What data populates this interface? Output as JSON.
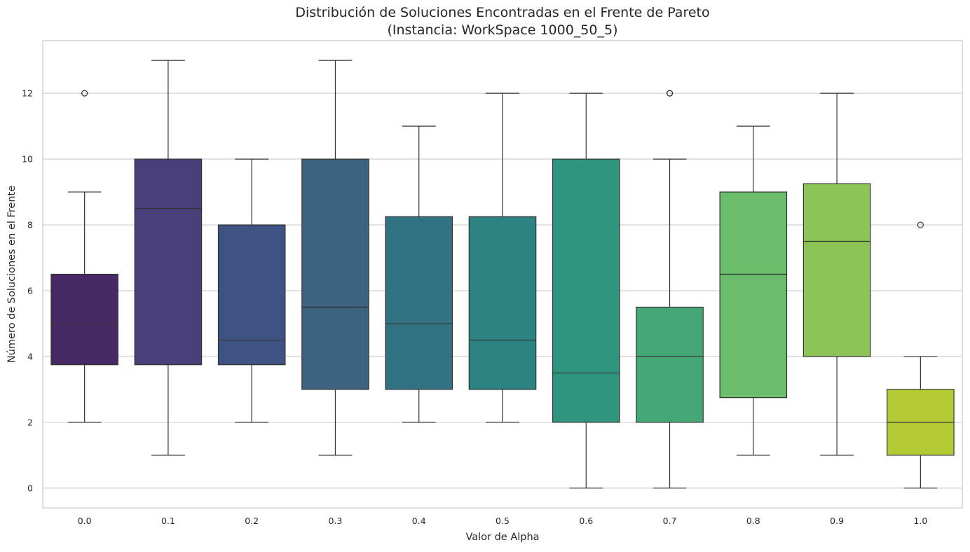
{
  "chart_data": {
    "type": "box",
    "title_lines": [
      "Distribución de Soluciones Encontradas en el Frente de Pareto",
      "(Instancia: WorkSpace 1000_50_5)"
    ],
    "xlabel": "Valor de Alpha",
    "ylabel": "Número de Soluciones en el Frente",
    "ylim": [
      -0.6,
      13.6
    ],
    "yticks": [
      0,
      2,
      4,
      6,
      8,
      10,
      12
    ],
    "grid": {
      "y": true,
      "x": false,
      "color": "#cccccc"
    },
    "legend": "none",
    "categories": [
      "0.0",
      "0.1",
      "0.2",
      "0.3",
      "0.4",
      "0.5",
      "0.6",
      "0.7",
      "0.8",
      "0.9",
      "1.0"
    ],
    "boxes": [
      {
        "category": "0.0",
        "whisker_low": 2,
        "q1": 3.75,
        "median": 5.0,
        "q3": 6.5,
        "whisker_high": 9,
        "outliers": [
          12
        ],
        "color": "#472a65"
      },
      {
        "category": "0.1",
        "whisker_low": 1,
        "q1": 3.75,
        "median": 8.5,
        "q3": 10.0,
        "whisker_high": 13,
        "outliers": [],
        "color": "#483f7b"
      },
      {
        "category": "0.2",
        "whisker_low": 2,
        "q1": 3.75,
        "median": 4.5,
        "q3": 8.0,
        "whisker_high": 10,
        "outliers": [],
        "color": "#3f5382"
      },
      {
        "category": "0.3",
        "whisker_low": 1,
        "q1": 3.0,
        "median": 5.5,
        "q3": 10.0,
        "whisker_high": 13,
        "outliers": [],
        "color": "#3c6380"
      },
      {
        "category": "0.4",
        "whisker_low": 2,
        "q1": 3.0,
        "median": 5.0,
        "q3": 8.25,
        "whisker_high": 11,
        "outliers": [],
        "color": "#327383"
      },
      {
        "category": "0.5",
        "whisker_low": 2,
        "q1": 3.0,
        "median": 4.5,
        "q3": 8.25,
        "whisker_high": 12,
        "outliers": [],
        "color": "#2c8381"
      },
      {
        "category": "0.6",
        "whisker_low": 0,
        "q1": 2.0,
        "median": 3.5,
        "q3": 10.0,
        "whisker_high": 12,
        "outliers": [],
        "color": "#30957f"
      },
      {
        "category": "0.7",
        "whisker_low": 0,
        "q1": 2.0,
        "median": 4.0,
        "q3": 5.5,
        "whisker_high": 10,
        "outliers": [
          12,
          12
        ],
        "color": "#45a776"
      },
      {
        "category": "0.8",
        "whisker_low": 1,
        "q1": 2.75,
        "median": 6.5,
        "q3": 9.0,
        "whisker_high": 11,
        "outliers": [],
        "color": "#6abd6b"
      },
      {
        "category": "0.9",
        "whisker_low": 1,
        "q1": 4.0,
        "median": 7.5,
        "q3": 9.25,
        "whisker_high": 12,
        "outliers": [],
        "color": "#8cc555"
      },
      {
        "category": "1.0",
        "whisker_low": 0,
        "q1": 1.0,
        "median": 2.0,
        "q3": 3.0,
        "whisker_high": 4,
        "outliers": [
          8
        ],
        "color": "#b4ca35"
      }
    ]
  }
}
